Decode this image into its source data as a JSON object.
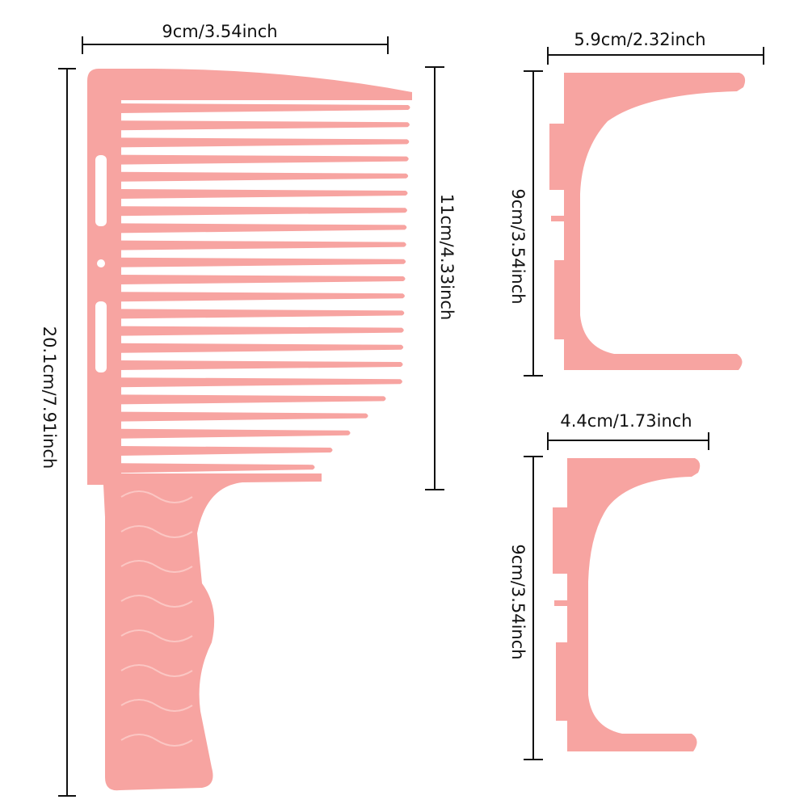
{
  "comb": {
    "width_label": "9cm/3.54inch",
    "length_label": "20.1cm/7.91inch",
    "teeth_label": "11cm/4.33inch"
  },
  "guides": [
    {
      "width_label": "5.9cm/2.32inch",
      "height_label": "9cm/3.54inch"
    },
    {
      "width_label": "4.4cm/1.73inch",
      "height_label": "9cm/3.54inch"
    }
  ]
}
